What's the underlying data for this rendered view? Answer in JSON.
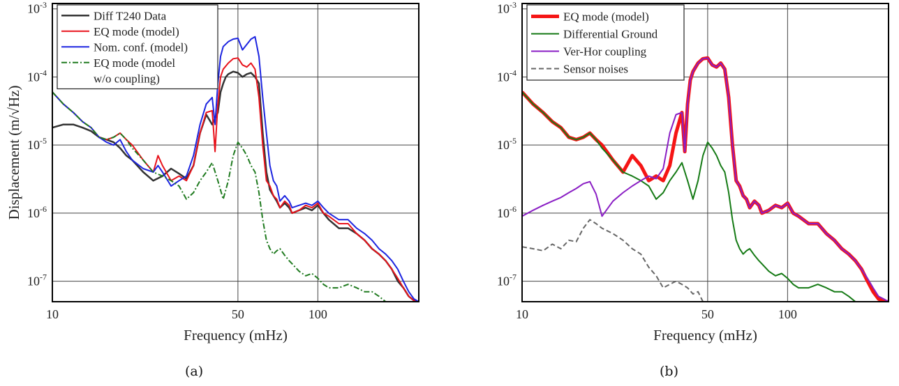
{
  "chart_data": [
    {
      "type": "line",
      "panel": "(a)",
      "xlabel": "Frequency (mHz)",
      "ylabel": "Displacement (m/√Hz)",
      "xscale": "log",
      "yscale": "log",
      "xlim": [
        10,
        240
      ],
      "ylim": [
        5e-08,
        0.0012
      ],
      "xticks": [
        {
          "value": 10,
          "label": "10"
        },
        {
          "value": 50,
          "label": "50"
        },
        {
          "value": 100,
          "label": "100"
        }
      ],
      "yticks": [
        {
          "value": 1e-07,
          "base": "10",
          "exp": "-7"
        },
        {
          "value": 1e-06,
          "base": "10",
          "exp": "-6"
        },
        {
          "value": 1e-05,
          "base": "10",
          "exp": "-5"
        },
        {
          "value": 0.0001,
          "base": "10",
          "exp": "-4"
        },
        {
          "value": 0.001,
          "base": "10",
          "exp": "-3"
        }
      ],
      "grid": true,
      "legend_position": "top-left",
      "series": [
        {
          "name": "Diff T240 Data",
          "color": "#333333",
          "dash": "solid",
          "width": 2.5,
          "x": [
            10,
            11,
            12,
            13,
            14,
            15,
            16,
            17,
            18,
            19,
            20,
            22,
            24,
            26,
            28,
            30,
            32,
            34,
            36,
            38,
            40,
            42,
            43,
            44,
            45,
            46,
            47,
            48,
            50,
            52,
            54,
            56,
            58,
            60,
            62,
            64,
            66,
            68,
            70,
            72,
            75,
            78,
            80,
            85,
            90,
            95,
            100,
            105,
            110,
            120,
            130,
            140,
            150,
            160,
            170,
            180,
            190,
            200,
            210,
            220,
            230,
            240
          ],
          "y": [
            1.8e-05,
            2e-05,
            2e-05,
            1.8e-05,
            1.6e-05,
            1.3e-05,
            1.2e-05,
            1.1e-05,
            9e-06,
            7e-06,
            6e-06,
            4e-06,
            3e-06,
            3.5e-06,
            4.5e-06,
            3.8e-06,
            3.2e-06,
            5e-06,
            1.5e-05,
            2.8e-05,
            2e-05,
            3e-05,
            6e-05,
            8e-05,
            0.0001,
            0.00011,
            0.000115,
            0.00012,
            0.000115,
            0.0001,
            0.00011,
            0.000115,
            0.0001,
            8e-05,
            1.5e-05,
            4e-06,
            2.2e-06,
            1.8e-06,
            1.5e-06,
            1.2e-06,
            1.4e-06,
            1.2e-06,
            1e-06,
            1.1e-06,
            1.2e-06,
            1.1e-06,
            1.3e-06,
            1e-06,
            8e-07,
            6e-07,
            6e-07,
            5e-07,
            4e-07,
            3e-07,
            2.5e-07,
            2e-07,
            1.5e-07,
            1e-07,
            8e-08,
            6e-08,
            5.2e-08,
            5e-08
          ]
        },
        {
          "name": "EQ mode (model)",
          "color": "#e8121b",
          "dash": "solid",
          "width": 2,
          "x": [
            10,
            11,
            12,
            13,
            14,
            15,
            16,
            17,
            18,
            19,
            20,
            22,
            24,
            25,
            26,
            28,
            30,
            32,
            34,
            36,
            38,
            40,
            41,
            42,
            43,
            44,
            46,
            48,
            50,
            52,
            54,
            56,
            58,
            60,
            62,
            64,
            66,
            68,
            70,
            72,
            75,
            78,
            80,
            85,
            90,
            95,
            100,
            105,
            110,
            120,
            130,
            140,
            150,
            160,
            170,
            180,
            190,
            200,
            210,
            220,
            230,
            240
          ],
          "y": [
            6e-05,
            4e-05,
            3e-05,
            2.2e-05,
            1.8e-05,
            1.3e-05,
            1.2e-05,
            1.3e-05,
            1.5e-05,
            1.2e-05,
            1e-05,
            6e-06,
            4e-06,
            7e-06,
            5e-06,
            3e-06,
            3.5e-06,
            3e-06,
            5e-06,
            1.5e-05,
            3e-05,
            3.2e-05,
            8e-06,
            4e-05,
            0.0001,
            0.00013,
            0.00016,
            0.000185,
            0.00019,
            0.00015,
            0.00014,
            0.00016,
            0.00013,
            5e-05,
            1e-05,
            3e-06,
            2.5e-06,
            1.8e-06,
            1.6e-06,
            1.2e-06,
            1.5e-06,
            1.3e-06,
            1e-06,
            1.1e-06,
            1.3e-06,
            1.2e-06,
            1.4e-06,
            1e-06,
            9e-07,
            7e-07,
            7e-07,
            5e-07,
            4e-07,
            3e-07,
            2.5e-07,
            2e-07,
            1.5e-07,
            1.1e-07,
            8e-08,
            6e-08,
            5.2e-08,
            5e-08
          ]
        },
        {
          "name": "Nom. conf. (model)",
          "color": "#1c24e0",
          "dash": "solid",
          "width": 2,
          "x": [
            10,
            11,
            12,
            13,
            14,
            15,
            16,
            17,
            18,
            19,
            20,
            22,
            24,
            25,
            26,
            28,
            30,
            32,
            34,
            36,
            38,
            40,
            41,
            42,
            43,
            44,
            46,
            48,
            50,
            52,
            54,
            56,
            58,
            60,
            62,
            64,
            66,
            68,
            70,
            72,
            75,
            78,
            80,
            85,
            90,
            95,
            100,
            105,
            110,
            120,
            130,
            140,
            150,
            160,
            170,
            180,
            190,
            200,
            210,
            220,
            230,
            240
          ],
          "y": [
            6e-05,
            4e-05,
            3e-05,
            2.2e-05,
            1.8e-05,
            1.3e-05,
            1.1e-05,
            1e-05,
            1.2e-05,
            8e-06,
            6e-06,
            4.5e-06,
            4e-06,
            5e-06,
            4e-06,
            2.5e-06,
            3e-06,
            3.5e-06,
            7e-06,
            2e-05,
            4e-05,
            5e-05,
            2e-05,
            8e-05,
            0.0002,
            0.00028,
            0.00033,
            0.00036,
            0.00037,
            0.00025,
            0.0003,
            0.00036,
            0.00039,
            0.0002,
            5e-05,
            1.5e-05,
            5e-06,
            3e-06,
            2.5e-06,
            1.5e-06,
            1.8e-06,
            1.5e-06,
            1.2e-06,
            1.3e-06,
            1.4e-06,
            1.3e-06,
            1.5e-06,
            1.2e-06,
            1e-06,
            8e-07,
            8e-07,
            6e-07,
            5e-07,
            4e-07,
            3e-07,
            2.5e-07,
            2e-07,
            1.5e-07,
            1e-07,
            7e-08,
            5.5e-08,
            5e-08
          ]
        },
        {
          "name": "EQ mode (model\nw/o coupling)",
          "color": "#1f7a1f",
          "dash": "dashdot",
          "width": 2,
          "x": [
            10,
            11,
            12,
            13,
            14,
            15,
            16,
            17,
            18,
            19,
            20,
            22,
            24,
            26,
            28,
            30,
            32,
            34,
            36,
            38,
            40,
            42,
            44,
            46,
            48,
            50,
            52,
            54,
            56,
            58,
            60,
            62,
            64,
            66,
            68,
            70,
            72,
            75,
            78,
            80,
            85,
            90,
            95,
            100,
            105,
            110,
            120,
            130,
            140,
            150,
            160,
            170,
            180
          ],
          "y": [
            6e-05,
            4e-05,
            3e-05,
            2.2e-05,
            1.8e-05,
            1.3e-05,
            1.2e-05,
            1.3e-05,
            1.5e-05,
            1.2e-05,
            9e-06,
            6e-06,
            4e-06,
            3.5e-06,
            3e-06,
            2.5e-06,
            1.6e-06,
            2e-06,
            3e-06,
            4e-06,
            5.5e-06,
            3e-06,
            1.6e-06,
            3e-06,
            7e-06,
            1.1e-05,
            9e-06,
            7e-06,
            5e-06,
            4e-06,
            2e-06,
            8e-07,
            4e-07,
            3e-07,
            2.5e-07,
            2.8e-07,
            3e-07,
            2.4e-07,
            2e-07,
            1.8e-07,
            1.4e-07,
            1.2e-07,
            1.3e-07,
            1.1e-07,
            9e-08,
            8e-08,
            8e-08,
            9e-08,
            8e-08,
            7e-08,
            7e-08,
            6e-08,
            5e-08
          ]
        }
      ]
    },
    {
      "type": "line",
      "panel": "(b)",
      "xlabel": "Frequency (mHz)",
      "ylabel": "",
      "xscale": "log",
      "yscale": "log",
      "xlim": [
        10,
        240
      ],
      "ylim": [
        5e-08,
        0.0012
      ],
      "xticks": [
        {
          "value": 10,
          "label": "10"
        },
        {
          "value": 50,
          "label": "50"
        },
        {
          "value": 100,
          "label": "100"
        }
      ],
      "yticks": [
        {
          "value": 1e-07,
          "base": "10",
          "exp": "-7"
        },
        {
          "value": 1e-06,
          "base": "10",
          "exp": "-6"
        },
        {
          "value": 1e-05,
          "base": "10",
          "exp": "-5"
        },
        {
          "value": 0.0001,
          "base": "10",
          "exp": "-4"
        },
        {
          "value": 0.001,
          "base": "10",
          "exp": "-3"
        }
      ],
      "grid": true,
      "legend_position": "top-left",
      "series": [
        {
          "name": "EQ mode (model)",
          "color": "#f51515",
          "dash": "solid",
          "width": 5,
          "x": [
            10,
            11,
            12,
            13,
            14,
            15,
            16,
            17,
            18,
            19,
            20,
            22,
            24,
            26,
            28,
            30,
            32,
            34,
            36,
            38,
            40,
            41,
            42,
            43,
            44,
            46,
            48,
            50,
            52,
            54,
            56,
            58,
            60,
            62,
            64,
            66,
            68,
            70,
            72,
            75,
            78,
            80,
            85,
            90,
            95,
            100,
            105,
            110,
            120,
            130,
            140,
            150,
            160,
            170,
            180,
            190,
            200,
            210,
            220,
            230,
            240
          ],
          "y": [
            6e-05,
            4e-05,
            3e-05,
            2.2e-05,
            1.8e-05,
            1.3e-05,
            1.2e-05,
            1.3e-05,
            1.5e-05,
            1.2e-05,
            1e-05,
            6e-06,
            4e-06,
            7e-06,
            5e-06,
            3e-06,
            3.5e-06,
            3e-06,
            5e-06,
            1.5e-05,
            3e-05,
            8e-06,
            4e-05,
            9e-05,
            0.00012,
            0.00016,
            0.000185,
            0.00019,
            0.00015,
            0.00014,
            0.00016,
            0.00013,
            5e-05,
            1e-05,
            3e-06,
            2.5e-06,
            1.8e-06,
            1.6e-06,
            1.2e-06,
            1.5e-06,
            1.3e-06,
            1e-06,
            1.1e-06,
            1.3e-06,
            1.2e-06,
            1.4e-06,
            1e-06,
            9e-07,
            7e-07,
            7e-07,
            5e-07,
            4e-07,
            3e-07,
            2.5e-07,
            2e-07,
            1.5e-07,
            1e-07,
            7e-08,
            5.5e-08,
            5e-08,
            5e-08
          ]
        },
        {
          "name": "Differential Ground",
          "color": "#157a15",
          "dash": "solid",
          "width": 2,
          "x": [
            10,
            11,
            12,
            13,
            14,
            15,
            16,
            17,
            18,
            19,
            20,
            22,
            24,
            26,
            28,
            30,
            32,
            34,
            36,
            38,
            40,
            42,
            44,
            46,
            48,
            50,
            52,
            54,
            56,
            58,
            60,
            62,
            64,
            66,
            68,
            70,
            72,
            75,
            78,
            80,
            85,
            90,
            95,
            100,
            105,
            110,
            120,
            130,
            140,
            150,
            160,
            170,
            180
          ],
          "y": [
            6e-05,
            4e-05,
            3e-05,
            2.2e-05,
            1.8e-05,
            1.3e-05,
            1.2e-05,
            1.3e-05,
            1.5e-05,
            1.2e-05,
            9e-06,
            6e-06,
            4e-06,
            3.5e-06,
            3e-06,
            2.5e-06,
            1.6e-06,
            2e-06,
            3e-06,
            4e-06,
            5.5e-06,
            3e-06,
            1.6e-06,
            3e-06,
            7e-06,
            1.1e-05,
            9e-06,
            7e-06,
            5e-06,
            4e-06,
            2e-06,
            8e-07,
            4e-07,
            3e-07,
            2.5e-07,
            2.8e-07,
            3e-07,
            2.4e-07,
            2e-07,
            1.8e-07,
            1.4e-07,
            1.2e-07,
            1.3e-07,
            1.1e-07,
            9e-08,
            8e-08,
            8e-08,
            9e-08,
            8e-08,
            7e-08,
            7e-08,
            6e-08,
            5e-08
          ]
        },
        {
          "name": "Ver-Hor coupling",
          "color": "#8a1ec4",
          "dash": "solid",
          "width": 2,
          "x": [
            10,
            11,
            12,
            13,
            14,
            15,
            16,
            17,
            18,
            19,
            20,
            22,
            24,
            26,
            28,
            30,
            32,
            34,
            36,
            38,
            40,
            41,
            42,
            43,
            44,
            46,
            48,
            50,
            52,
            54,
            56,
            58,
            60,
            62,
            64,
            66,
            68,
            70,
            72,
            75,
            78,
            80,
            85,
            90,
            95,
            100,
            105,
            110,
            120,
            130,
            140,
            150,
            160,
            170,
            180,
            190,
            200,
            210,
            220,
            230,
            240
          ],
          "y": [
            9e-07,
            1.1e-06,
            1.3e-06,
            1.5e-06,
            1.7e-06,
            2e-06,
            2.3e-06,
            2.7e-06,
            2.9e-06,
            1.9e-06,
            9e-07,
            1.5e-06,
            2e-06,
            2.5e-06,
            3e-06,
            3.5e-06,
            3.2e-06,
            4.5e-06,
            1.5e-05,
            2.8e-05,
            3e-05,
            8e-06,
            4e-05,
            9e-05,
            0.00012,
            0.00016,
            0.000185,
            0.00019,
            0.00015,
            0.00014,
            0.00016,
            0.00013,
            5e-05,
            1e-05,
            3e-06,
            2.5e-06,
            1.8e-06,
            1.6e-06,
            1.2e-06,
            1.5e-06,
            1.3e-06,
            1e-06,
            1.1e-06,
            1.3e-06,
            1.2e-06,
            1.4e-06,
            1e-06,
            9e-07,
            7e-07,
            7e-07,
            5e-07,
            4e-07,
            3e-07,
            2.5e-07,
            2e-07,
            1.5e-07,
            1.1e-07,
            8e-08,
            6e-08,
            5.5e-08,
            5e-08
          ]
        },
        {
          "name": "Sensor noises",
          "color": "#666666",
          "dash": "dashed",
          "width": 2,
          "x": [
            10,
            11,
            12,
            13,
            14,
            15,
            16,
            17,
            18,
            19,
            20,
            22,
            24,
            26,
            28,
            30,
            32,
            34,
            36,
            38,
            40,
            42,
            44,
            46,
            48
          ],
          "y": [
            3.2e-07,
            3e-07,
            2.8e-07,
            3.5e-07,
            3e-07,
            4e-07,
            3.8e-07,
            6e-07,
            8e-07,
            7e-07,
            6e-07,
            5e-07,
            4e-07,
            3e-07,
            2.5e-07,
            1.6e-07,
            1.2e-07,
            8e-08,
            9e-08,
            1e-07,
            9e-08,
            8e-08,
            6.5e-08,
            7e-08,
            5e-08
          ]
        }
      ]
    }
  ],
  "captions": [
    "(a)",
    "(b)"
  ]
}
